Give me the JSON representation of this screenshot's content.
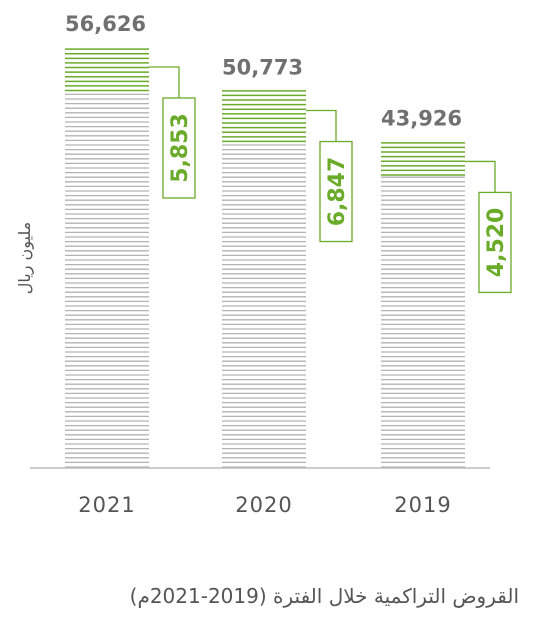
{
  "chart_data": {
    "type": "bar",
    "categories": [
      "2021",
      "2020",
      "2019"
    ],
    "totals": [
      56626,
      50773,
      43926
    ],
    "total_labels": [
      "56,626",
      "50,773",
      "43,926"
    ],
    "increments": [
      5853,
      6847,
      4520
    ],
    "increment_labels": [
      "5,853",
      "6,847",
      "4,520"
    ],
    "ylabel": "مليون ريال",
    "ylim": [
      0,
      56626
    ],
    "colors": {
      "base": "#b3b3b3",
      "increment": "#6aab2a",
      "axis": "#bcbcbc",
      "total_text": "#707070",
      "increment_text": "#6aab2a"
    }
  },
  "caption": "القروض التراكمية خلال الفترة (2019-2021م)"
}
